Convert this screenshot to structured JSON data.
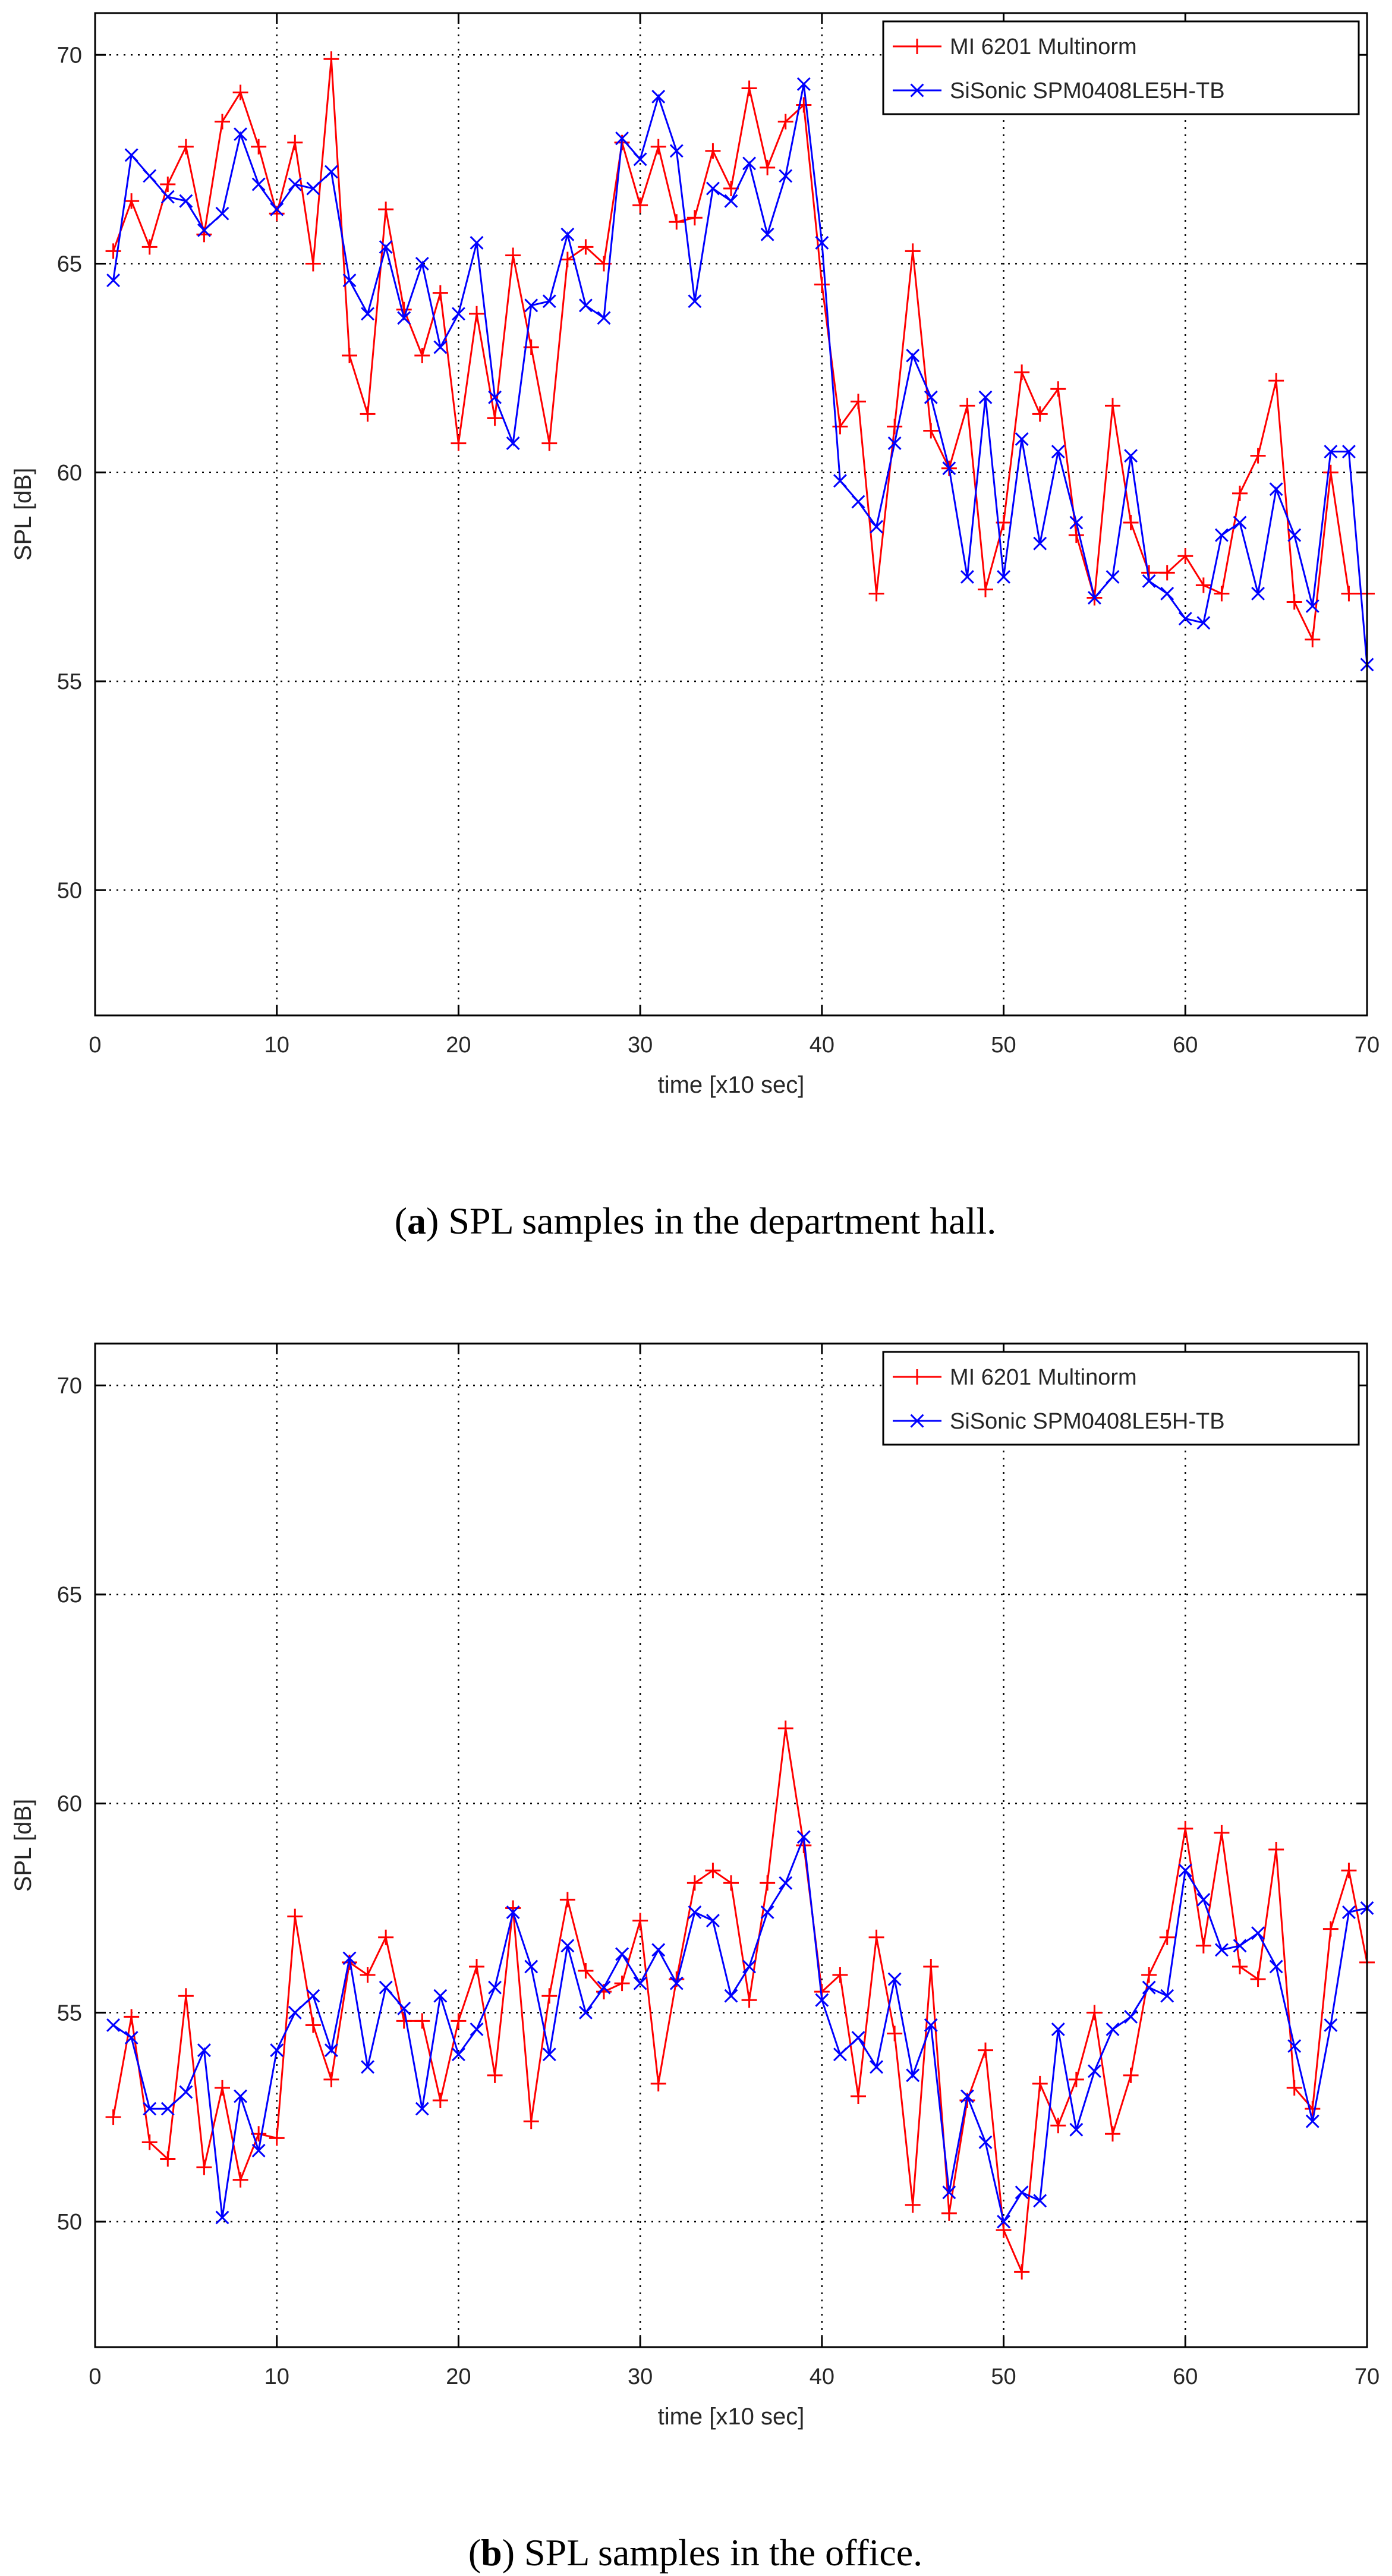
{
  "chart_data": [
    {
      "type": "line",
      "title": "",
      "caption": {
        "label": "a",
        "text": " SPL samples in the department hall."
      },
      "xlabel": "time [x10 sec]",
      "ylabel": "SPL [dB]",
      "xlim": [
        0,
        70
      ],
      "ylim": [
        47,
        71
      ],
      "xticks": [
        0,
        10,
        20,
        30,
        40,
        50,
        60,
        70
      ],
      "yticks": [
        50,
        55,
        60,
        65,
        70
      ],
      "grid": true,
      "legend": "top-right",
      "series": [
        {
          "name": "MI 6201 Multinorm",
          "color": "#ff0000",
          "marker": "plus",
          "x": [
            1,
            2,
            3,
            4,
            5,
            6,
            7,
            8,
            9,
            10,
            11,
            12,
            13,
            14,
            15,
            16,
            17,
            18,
            19,
            20,
            21,
            22,
            23,
            24,
            25,
            26,
            27,
            28,
            29,
            30,
            31,
            32,
            33,
            34,
            35,
            36,
            37,
            38,
            39,
            40,
            41,
            42,
            43,
            44,
            45,
            46,
            47,
            48,
            49,
            50,
            51,
            52,
            53,
            54,
            55,
            56,
            57,
            58,
            59,
            60,
            61,
            62,
            63,
            64,
            65,
            66,
            67,
            68,
            69,
            70
          ],
          "values": [
            65.3,
            66.5,
            65.4,
            66.9,
            67.8,
            65.7,
            68.4,
            69.1,
            67.8,
            66.2,
            67.9,
            65.0,
            69.9,
            62.8,
            61.4,
            66.3,
            63.9,
            62.8,
            64.3,
            60.7,
            63.8,
            61.3,
            65.2,
            63.0,
            60.7,
            65.1,
            65.4,
            65.0,
            67.9,
            66.4,
            67.8,
            66.0,
            66.1,
            67.7,
            66.8,
            69.2,
            67.3,
            68.4,
            68.8,
            64.5,
            61.1,
            61.7,
            57.1,
            61.1,
            65.3,
            61.0,
            60.1,
            61.6,
            57.2,
            58.8,
            62.4,
            61.4,
            62.0,
            58.5,
            57.0,
            61.6,
            58.8,
            57.6,
            57.6,
            58.0,
            57.3,
            57.1,
            59.5,
            60.4,
            62.2,
            56.9,
            56.0,
            60.0,
            57.1,
            57.1
          ]
        },
        {
          "name": "SiSonic SPM0408LE5H-TB",
          "color": "#0000ff",
          "marker": "x",
          "x": [
            1,
            2,
            3,
            4,
            5,
            6,
            7,
            8,
            9,
            10,
            11,
            12,
            13,
            14,
            15,
            16,
            17,
            18,
            19,
            20,
            21,
            22,
            23,
            24,
            25,
            26,
            27,
            28,
            29,
            30,
            31,
            32,
            33,
            34,
            35,
            36,
            37,
            38,
            39,
            40,
            41,
            42,
            43,
            44,
            45,
            46,
            47,
            48,
            49,
            50,
            51,
            52,
            53,
            54,
            55,
            56,
            57,
            58,
            59,
            60,
            61,
            62,
            63,
            64,
            65,
            66,
            67,
            68,
            69,
            70
          ],
          "values": [
            64.6,
            67.6,
            67.1,
            66.6,
            66.5,
            65.8,
            66.2,
            68.1,
            66.9,
            66.3,
            66.9,
            66.8,
            67.2,
            64.6,
            63.8,
            65.4,
            63.7,
            65.0,
            63.0,
            63.8,
            65.5,
            61.8,
            60.7,
            64.0,
            64.1,
            65.7,
            64.0,
            63.7,
            68.0,
            67.5,
            69.0,
            67.7,
            64.1,
            66.8,
            66.5,
            67.4,
            65.7,
            67.1,
            69.3,
            65.5,
            59.8,
            59.3,
            58.7,
            60.7,
            62.8,
            61.8,
            60.1,
            57.5,
            61.8,
            57.5,
            60.8,
            58.3,
            60.5,
            58.8,
            57.0,
            57.5,
            60.4,
            57.4,
            57.1,
            56.5,
            56.4,
            58.5,
            58.8,
            57.1,
            59.6,
            58.5,
            56.8,
            60.5,
            60.5,
            55.4
          ]
        }
      ]
    },
    {
      "type": "line",
      "title": "",
      "caption": {
        "label": "b",
        "text": " SPL samples in the office."
      },
      "xlabel": "time [x10 sec]",
      "ylabel": "SPL [dB]",
      "xlim": [
        0,
        70
      ],
      "ylim": [
        47,
        71
      ],
      "xticks": [
        0,
        10,
        20,
        30,
        40,
        50,
        60,
        70
      ],
      "yticks": [
        50,
        55,
        60,
        65,
        70
      ],
      "grid": true,
      "legend": "top-right",
      "series": [
        {
          "name": "MI 6201 Multinorm",
          "color": "#ff0000",
          "marker": "plus",
          "x": [
            1,
            2,
            3,
            4,
            5,
            6,
            7,
            8,
            9,
            10,
            11,
            12,
            13,
            14,
            15,
            16,
            17,
            18,
            19,
            20,
            21,
            22,
            23,
            24,
            25,
            26,
            27,
            28,
            29,
            30,
            31,
            32,
            33,
            34,
            35,
            36,
            37,
            38,
            39,
            40,
            41,
            42,
            43,
            44,
            45,
            46,
            47,
            48,
            49,
            50,
            51,
            52,
            53,
            54,
            55,
            56,
            57,
            58,
            59,
            60,
            61,
            62,
            63,
            64,
            65,
            66,
            67,
            68,
            69,
            70
          ],
          "values": [
            52.5,
            54.9,
            51.9,
            51.5,
            55.4,
            51.3,
            53.2,
            51.0,
            52.1,
            52.0,
            57.3,
            54.7,
            53.4,
            56.2,
            55.9,
            56.8,
            54.8,
            54.8,
            52.9,
            54.8,
            56.1,
            53.5,
            57.5,
            52.4,
            55.4,
            57.7,
            56.0,
            55.5,
            55.7,
            57.2,
            53.3,
            55.8,
            58.1,
            58.4,
            58.1,
            55.3,
            58.1,
            61.8,
            59.0,
            55.5,
            55.9,
            53.0,
            56.8,
            54.5,
            50.4,
            56.1,
            50.2,
            52.9,
            54.1,
            49.8,
            48.8,
            53.3,
            52.3,
            53.4,
            55.0,
            52.1,
            53.5,
            55.9,
            56.8,
            59.4,
            56.6,
            59.3,
            56.1,
            55.8,
            58.9,
            53.2,
            52.7,
            57.0,
            58.4,
            56.2
          ]
        },
        {
          "name": "SiSonic SPM0408LE5H-TB",
          "color": "#0000ff",
          "marker": "x",
          "x": [
            1,
            2,
            3,
            4,
            5,
            6,
            7,
            8,
            9,
            10,
            11,
            12,
            13,
            14,
            15,
            16,
            17,
            18,
            19,
            20,
            21,
            22,
            23,
            24,
            25,
            26,
            27,
            28,
            29,
            30,
            31,
            32,
            33,
            34,
            35,
            36,
            37,
            38,
            39,
            40,
            41,
            42,
            43,
            44,
            45,
            46,
            47,
            48,
            49,
            50,
            51,
            52,
            53,
            54,
            55,
            56,
            57,
            58,
            59,
            60,
            61,
            62,
            63,
            64,
            65,
            66,
            67,
            68,
            69,
            70
          ],
          "values": [
            54.7,
            54.4,
            52.7,
            52.7,
            53.1,
            54.1,
            50.1,
            53.0,
            51.7,
            54.1,
            55.0,
            55.4,
            54.1,
            56.3,
            53.7,
            55.6,
            55.1,
            52.7,
            55.4,
            54.0,
            54.6,
            55.6,
            57.4,
            56.1,
            54.0,
            56.6,
            55.0,
            55.6,
            56.4,
            55.7,
            56.5,
            55.7,
            57.4,
            57.2,
            55.4,
            56.1,
            57.4,
            58.1,
            59.2,
            55.3,
            54.0,
            54.4,
            53.7,
            55.8,
            53.5,
            54.7,
            50.7,
            53.0,
            51.9,
            50.0,
            50.7,
            50.5,
            54.6,
            52.2,
            53.6,
            54.6,
            54.9,
            55.6,
            55.4,
            58.4,
            57.7,
            56.5,
            56.6,
            56.9,
            56.1,
            54.2,
            52.4,
            54.7,
            57.4,
            57.5
          ]
        }
      ]
    }
  ]
}
